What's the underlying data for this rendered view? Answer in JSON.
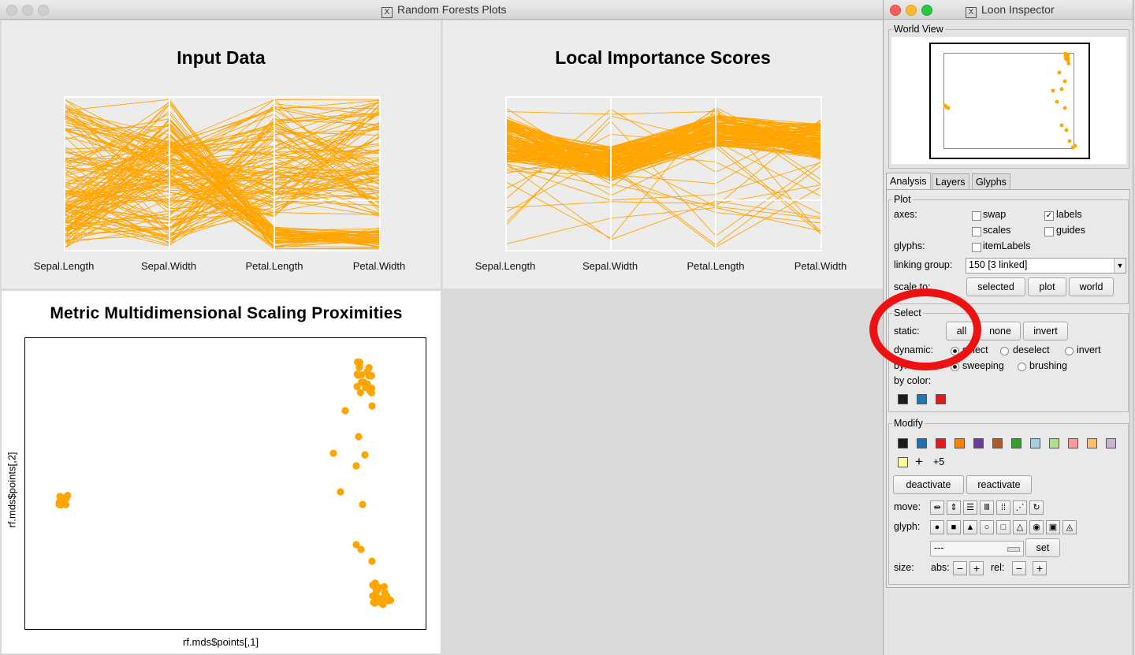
{
  "main_window": {
    "title": "Random Forests Plots"
  },
  "input_plot": {
    "title": "Input Data",
    "axes": [
      "Sepal.Length",
      "Sepal.Width",
      "Petal.Length",
      "Petal.Width"
    ]
  },
  "importance_plot": {
    "title": "Local Importance Scores",
    "axes": [
      "Sepal.Length",
      "Sepal.Width",
      "Petal.Length",
      "Petal.Width"
    ]
  },
  "mds_plot": {
    "title": "Metric Multidimensional Scaling Proximities",
    "xlabel": "rf.mds$points[,1]",
    "ylabel": "rf.mds$points[,2]"
  },
  "colors": {
    "orange": "#ffa500",
    "panel": "#ececec"
  },
  "inspector": {
    "title": "Loon Inspector",
    "world_view_label": "World View",
    "tabs": [
      "Analysis",
      "Layers",
      "Glyphs"
    ],
    "plot": {
      "legend": "Plot",
      "axes_label": "axes:",
      "swap": "swap",
      "labels": "labels",
      "scales": "scales",
      "guides": "guides",
      "glyphs_label": "glyphs:",
      "itemlabels": "itemLabels",
      "linking_group_label": "linking group:",
      "linking_group_value": "150  [3 linked]",
      "scale_to_label": "scale to:",
      "scale_buttons": [
        "selected",
        "plot",
        "world"
      ]
    },
    "select": {
      "legend": "Select",
      "static_label": "static:",
      "static_buttons": [
        "all",
        "none",
        "invert"
      ],
      "dynamic_label": "dynamic:",
      "dynamic_options": [
        "select",
        "deselect",
        "invert"
      ],
      "by_label": "by:",
      "by_options": [
        "sweeping",
        "brushing"
      ],
      "by_color_label": "by color:",
      "by_colors": [
        "#1b1b1b",
        "#1f77b4",
        "#e31a1c"
      ]
    },
    "modify": {
      "legend": "Modify",
      "palette": [
        "#1b1b1b",
        "#1f6fb4",
        "#e31a1c",
        "#ff7f00",
        "#6a3d9a",
        "#b15928",
        "#33a02c",
        "#a6cee3",
        "#b2df8a",
        "#fb9a99",
        "#fdbf6f",
        "#cab2d6",
        "#ffff99"
      ],
      "more_label": "+5",
      "deactivate": "deactivate",
      "reactivate": "reactivate",
      "move_label": "move:",
      "glyph_label": "glyph:",
      "glyph_select": "---",
      "set": "set",
      "size_label": "size:",
      "abs_label": "abs:",
      "rel_label": "rel:",
      "minus": "−",
      "plus": "+"
    }
  }
}
